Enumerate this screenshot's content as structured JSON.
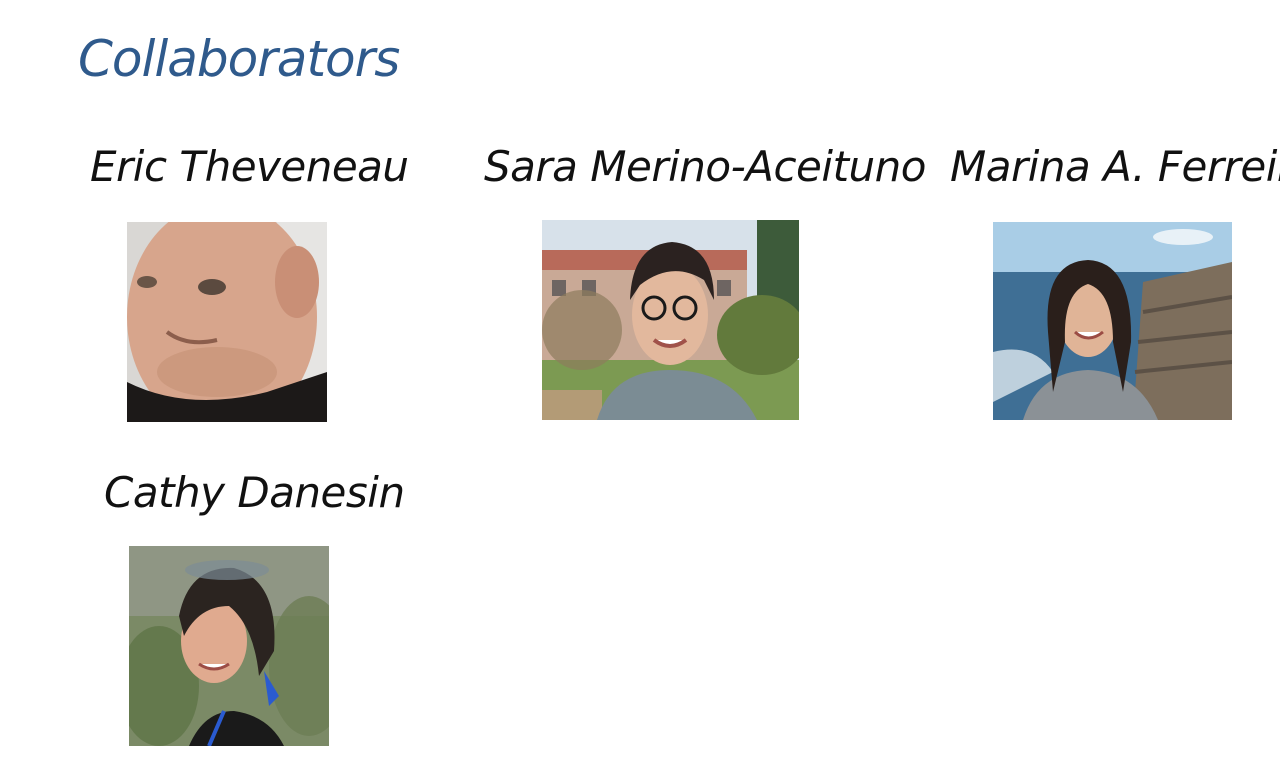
{
  "title": "Collaborators",
  "colors": {
    "title": "#2f5a8c",
    "names": "#111111",
    "background": "#ffffff"
  },
  "collaborators": [
    {
      "name": "Eric Theveneau",
      "photo_icon": "portrait-photo"
    },
    {
      "name": "Sara Merino-Aceituno",
      "photo_icon": "portrait-photo"
    },
    {
      "name": "Marina A. Ferreira",
      "photo_icon": "portrait-photo"
    },
    {
      "name": "Cathy Danesin",
      "photo_icon": "portrait-photo"
    }
  ]
}
